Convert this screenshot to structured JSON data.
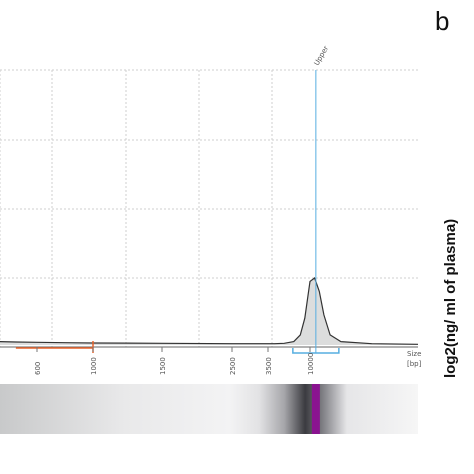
{
  "panel_letter": "b",
  "colors": {
    "trace_fill": "#dcdddd",
    "trace_stroke": "#333333",
    "grid": "#cfcfcf",
    "marker_line": "#56aee0",
    "range_line": "#e8622a",
    "gel_band": "#8a1390"
  },
  "chart_data": {
    "type": "area",
    "title": "",
    "xlabel": "Size",
    "xunit": "[bp]",
    "ylabel": "log2(ng/ ml of plasma)",
    "scale": "log",
    "grid": true,
    "x_ticks": [
      "600",
      "1000",
      "1500",
      "2500",
      "3500",
      "10000"
    ],
    "markers": [
      {
        "label": "Upper",
        "size_bp": 10380
      }
    ],
    "highlight_range_bp": [
      400,
      1000
    ],
    "trace": {
      "x": [
        250,
        400,
        600,
        800,
        1000,
        1500,
        2500,
        3500,
        4500,
        6000,
        7500,
        8500,
        9200,
        9700,
        10000,
        10300,
        10600,
        10900,
        11300,
        12000,
        14000,
        17000
      ],
      "y": [
        0.05,
        0.045,
        0.04,
        0.035,
        0.03,
        0.025,
        0.02,
        0.02,
        0.02,
        0.025,
        0.05,
        0.15,
        0.4,
        0.75,
        0.95,
        1.0,
        0.8,
        0.45,
        0.15,
        0.05,
        0.02,
        0.01
      ],
      "y_range": [
        0,
        1.0
      ]
    },
    "gel_lane": {
      "band_bp": 10380
    }
  }
}
